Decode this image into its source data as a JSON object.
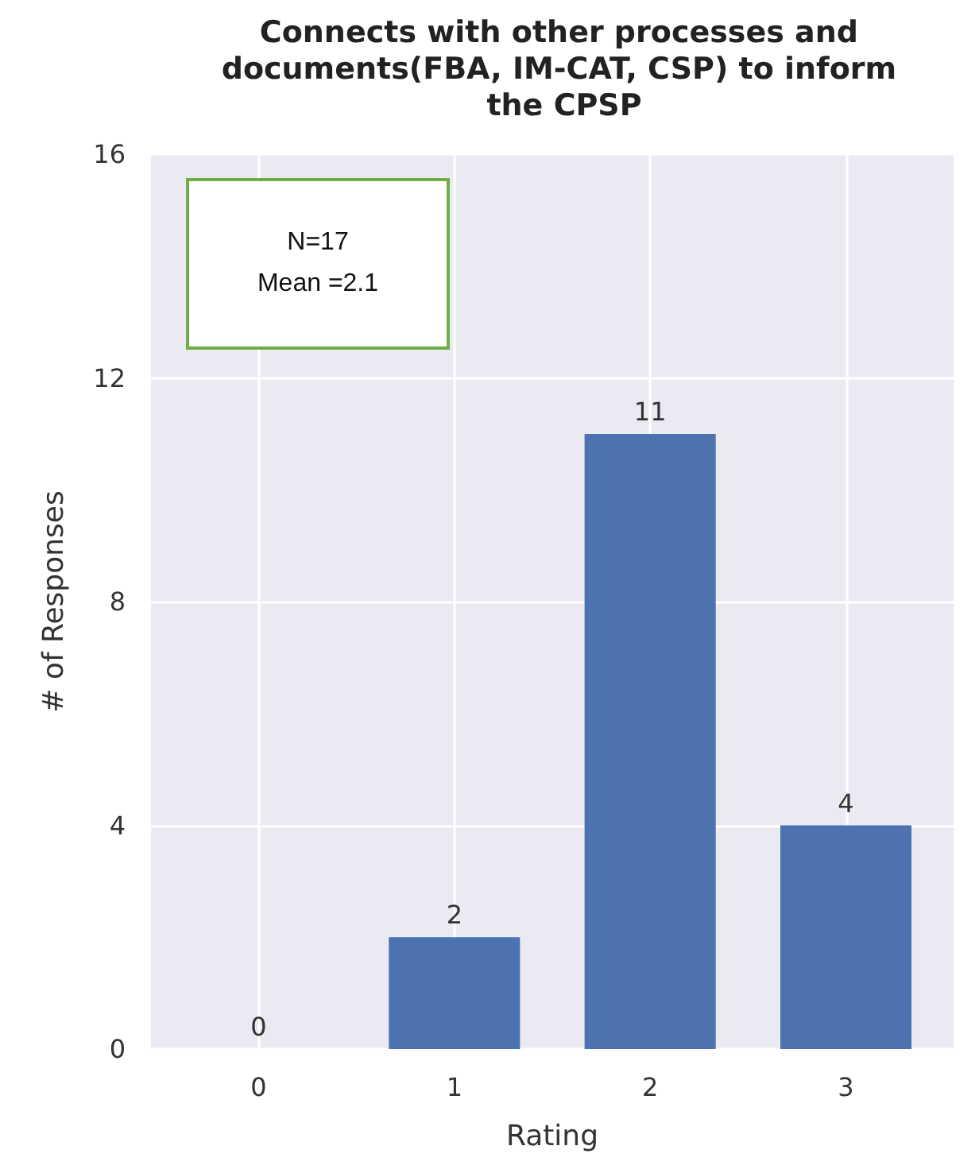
{
  "chart_data": {
    "type": "bar",
    "title": "Connects with other processes and documents(FBA, IM-CAT, CSP) to inform the CPSP",
    "xlabel": "Rating",
    "ylabel": "# of Responses",
    "x": [
      0,
      1,
      2,
      3
    ],
    "values": [
      0,
      2,
      11,
      4
    ],
    "color": "#4c72b0",
    "xlim": [
      -0.55,
      3.55
    ],
    "xticks": [
      0,
      1,
      2,
      3
    ],
    "ylim": [
      0,
      16
    ],
    "yticks": [
      0,
      4,
      8,
      12,
      16
    ],
    "grid": true,
    "data_labels": true,
    "annotations": [
      "N=17",
      "Mean =2.1"
    ]
  }
}
